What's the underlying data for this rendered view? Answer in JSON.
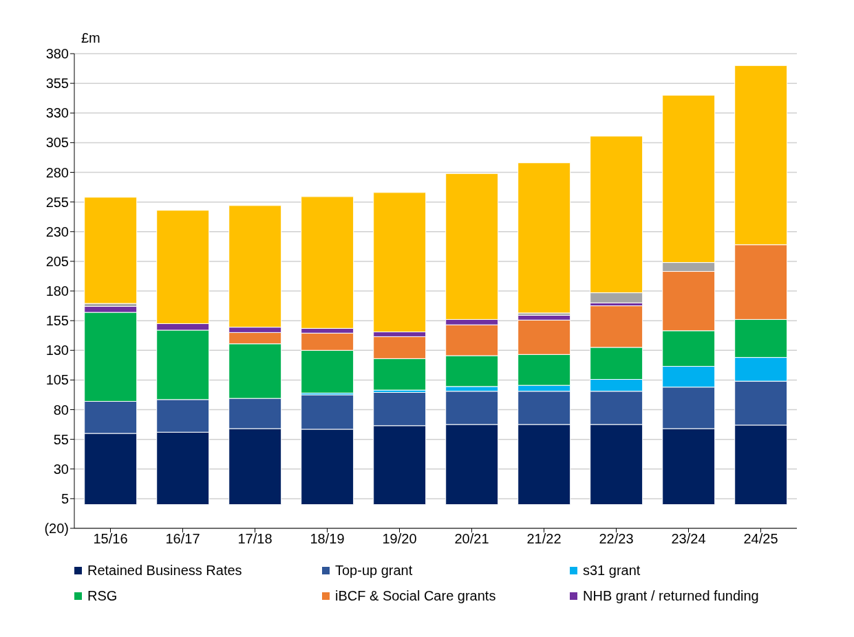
{
  "chart_data": {
    "type": "bar",
    "stacked": true,
    "ylabel": "£m",
    "categories": [
      "15/16",
      "16/17",
      "17/18",
      "18/19",
      "19/20",
      "20/21",
      "21/22",
      "22/23",
      "23/24",
      "24/25"
    ],
    "series": [
      {
        "name": "Retained Business Rates",
        "color": "#002060",
        "values": [
          60,
          61,
          64,
          63.5,
          66.5,
          67.5,
          67.5,
          67.5,
          64,
          67
        ]
      },
      {
        "name": "Top-up grant",
        "color": "#2f5597",
        "values": [
          27,
          27.5,
          25.5,
          29,
          28,
          28,
          28,
          28,
          35,
          37
        ]
      },
      {
        "name": "s31 grant",
        "color": "#00b0f0",
        "values": [
          0,
          0,
          0,
          1.5,
          2,
          4,
          5,
          10,
          17.5,
          20
        ]
      },
      {
        "name": "RSG",
        "color": "#00b050",
        "values": [
          75,
          58.5,
          46,
          36,
          26.5,
          26,
          26,
          27,
          30,
          32
        ]
      },
      {
        "name": "iBCF & Social Care grants",
        "color": "#ed7d31",
        "values": [
          0,
          0,
          9.5,
          14.5,
          18.5,
          26,
          29,
          35,
          50,
          63
        ]
      },
      {
        "name": "NHB grant / returned funding",
        "color": "#7030a0",
        "values": [
          5,
          5.5,
          4.5,
          4,
          4,
          4.5,
          4,
          2.5,
          0,
          0
        ]
      },
      {
        "color": "#a5a5a5",
        "values": [
          2.5,
          0,
          0,
          0,
          0,
          0,
          2,
          8.5,
          7.5,
          0
        ]
      },
      {
        "color": "#ffc000",
        "values": [
          89.5,
          95.5,
          102.5,
          111,
          117.5,
          123,
          126.5,
          132,
          141,
          151
        ]
      }
    ],
    "ylim": [
      -20,
      380
    ],
    "yticks": [
      {
        "value": -20,
        "label": "(20)"
      },
      5,
      30,
      55,
      80,
      105,
      130,
      155,
      180,
      205,
      230,
      255,
      280,
      305,
      330,
      355,
      380
    ],
    "grid": "y",
    "legend": "bottom"
  }
}
